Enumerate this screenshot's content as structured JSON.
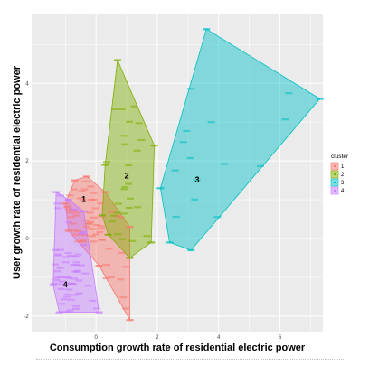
{
  "chart_data": {
    "type": "scatter",
    "xlabel": "Consumption growth rate of residential electric power",
    "ylabel": "User growth rate of residential electric power",
    "x_ticks": [
      0,
      2,
      4,
      6
    ],
    "y_ticks": [
      -2,
      0,
      2,
      4
    ],
    "xlim": [
      -2.1,
      7.4
    ],
    "ylim": [
      -2.4,
      5.8
    ],
    "grid": true,
    "background": "#ebebeb",
    "legend": {
      "title": "cluster",
      "position": "right",
      "entries": [
        "1",
        "2",
        "3",
        "4"
      ]
    },
    "series": [
      {
        "name": "1",
        "color": "#f8766d",
        "hull": [
          [
            -0.7,
            1.5
          ],
          [
            -0.3,
            1.6
          ],
          [
            0.3,
            1.2
          ],
          [
            1.1,
            0.3
          ],
          [
            1.1,
            -2.1
          ],
          [
            0.1,
            -0.7
          ],
          [
            -0.9,
            0.2
          ],
          [
            -1.0,
            0.9
          ]
        ],
        "label_pos": [
          -0.4,
          1.0
        ]
      },
      {
        "name": "2",
        "color": "#7cae00",
        "hull": [
          [
            0.7,
            4.6
          ],
          [
            1.9,
            2.4
          ],
          [
            1.8,
            -0.1
          ],
          [
            1.1,
            -0.5
          ],
          [
            0.4,
            0.1
          ],
          [
            0.2,
            0.6
          ],
          [
            0.3,
            1.9
          ]
        ],
        "label_pos": [
          1.0,
          1.6
        ]
      },
      {
        "name": "3",
        "color": "#00bfc4",
        "hull": [
          [
            3.6,
            5.4
          ],
          [
            7.3,
            3.6
          ],
          [
            3.1,
            -0.3
          ],
          [
            2.4,
            -0.1
          ],
          [
            2.1,
            1.3
          ]
        ],
        "label_pos": [
          3.3,
          1.5
        ]
      },
      {
        "name": "4",
        "color": "#c77cff",
        "hull": [
          [
            -1.3,
            1.2
          ],
          [
            -0.9,
            1.0
          ],
          [
            -0.4,
            0.7
          ],
          [
            0.1,
            -1.9
          ],
          [
            -1.2,
            -1.9
          ],
          [
            -1.4,
            -1.2
          ]
        ],
        "label_pos": [
          -1.0,
          -1.2
        ]
      }
    ]
  }
}
